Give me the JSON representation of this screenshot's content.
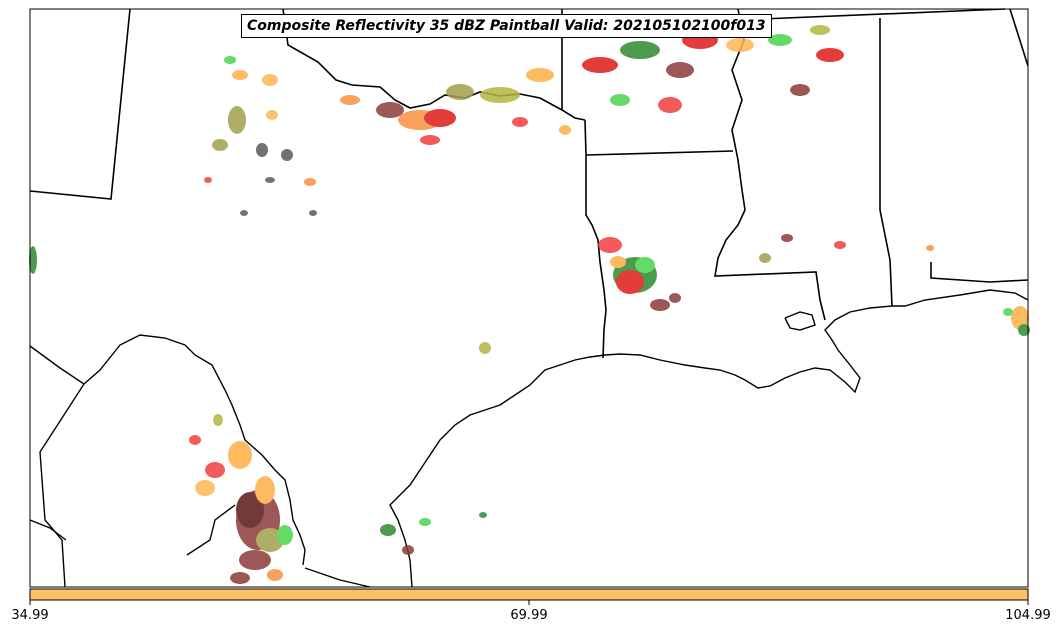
{
  "title": "Composite Reflectivity 35 dBZ Paintball Valid: 202105102100f013",
  "colorbar": {
    "ticks": [
      "34.99",
      "69.99",
      "104.99"
    ],
    "color": "#FDC166"
  },
  "paintball_colors": [
    "#FDAE45",
    "#FDB852",
    "#F23E3E",
    "#E01A1A",
    "#4CD44C",
    "#2E8B2E",
    "#A0A050",
    "#B4B440",
    "#8B3A3A",
    "#5A5A5A",
    "#F79040"
  ],
  "map": {
    "projection_box": "outlined",
    "features": [
      "state-borders",
      "country-border",
      "coastline"
    ]
  }
}
